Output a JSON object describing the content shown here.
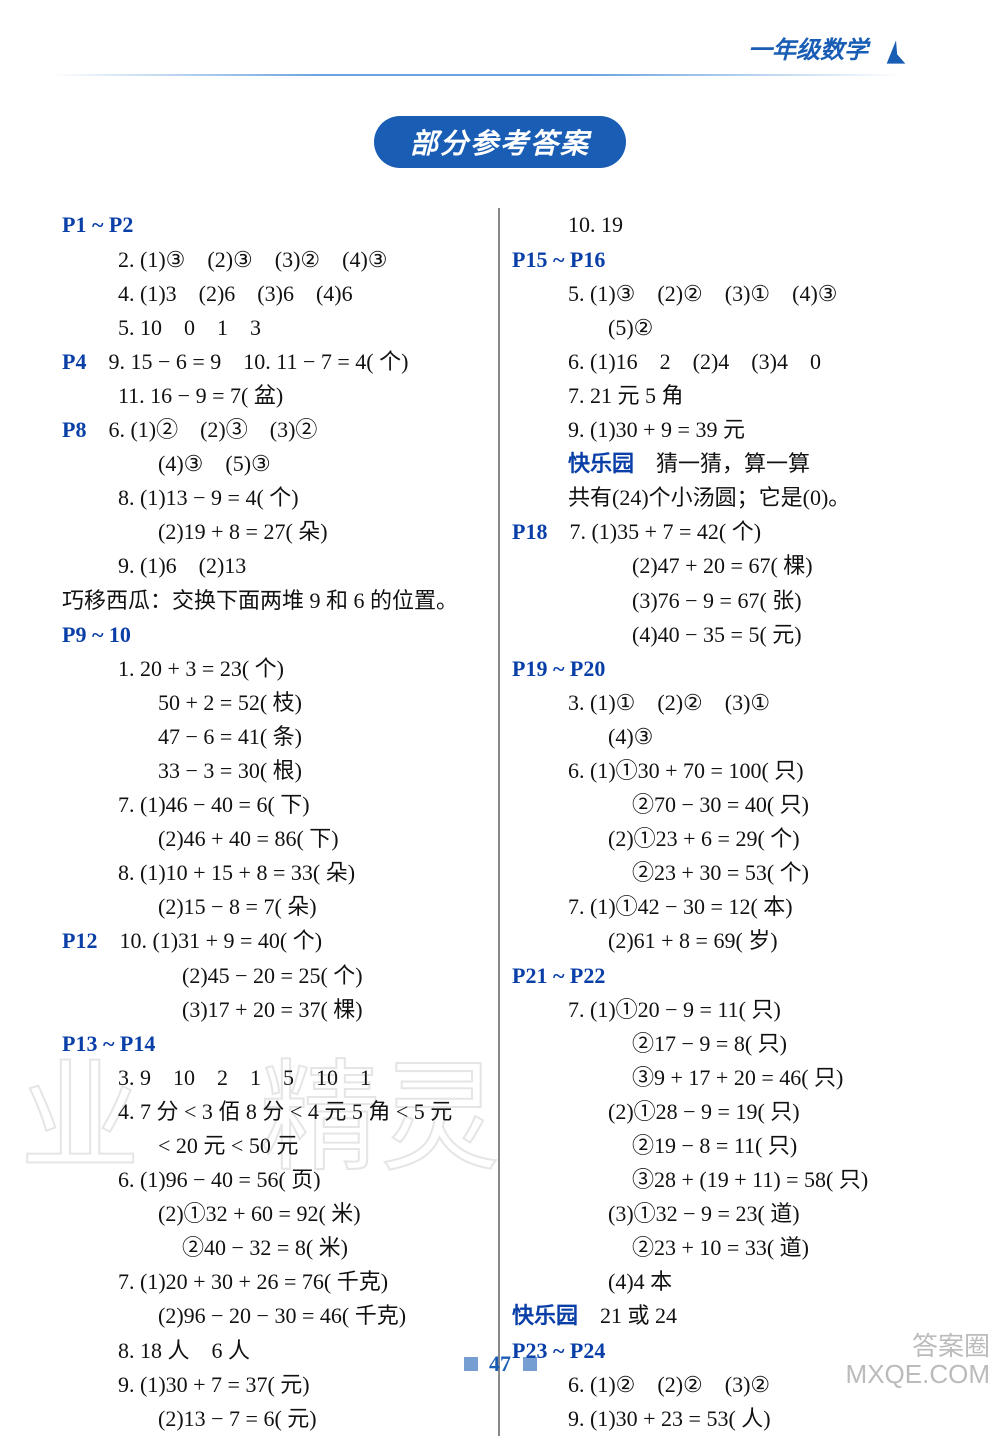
{
  "header": {
    "text": "一年级数学",
    "logo_fill": "#1a5db4"
  },
  "title": "部分参考答案",
  "colors": {
    "heading": "#0a3fa8",
    "body": "#111111",
    "pill_bg": "#1a5db4",
    "pill_fg": "#ffffff",
    "rule": "#888888"
  },
  "page_number": "47",
  "left_column": [
    {
      "t": "phead",
      "text": "P1 ~ P2",
      "indent": 0
    },
    {
      "t": "q",
      "text": "2. (1)③　(2)③　(3)②　(4)③",
      "indent": 1
    },
    {
      "t": "q",
      "text": "4. (1)3　(2)6　(3)6　(4)6",
      "indent": 1
    },
    {
      "t": "q",
      "text": "5. 10　0　1　3",
      "indent": 1
    },
    {
      "t": "mix",
      "head": "P4",
      "rest": "　9. 15 − 6 = 9　10. 11 − 7 = 4( 个)",
      "indent": 0
    },
    {
      "t": "q",
      "text": "11. 16 − 9 = 7( 盆)",
      "indent": 1
    },
    {
      "t": "mix",
      "head": "P8",
      "rest": "　6. (1)②　(2)③　(3)②",
      "indent": 0
    },
    {
      "t": "q",
      "text": "(4)③　(5)③",
      "indent": 2
    },
    {
      "t": "q",
      "text": "8. (1)13 − 9 = 4( 个)",
      "indent": 1
    },
    {
      "t": "q",
      "text": "(2)19 + 8 = 27( 朵)",
      "indent": 2
    },
    {
      "t": "q",
      "text": "9. (1)6　(2)13",
      "indent": 1
    },
    {
      "t": "q",
      "text": "巧移西瓜：交换下面两堆 9 和 6 的位置。",
      "indent": 0
    },
    {
      "t": "phead",
      "text": "P9 ~ 10",
      "indent": 0
    },
    {
      "t": "q",
      "text": "1. 20 + 3 = 23( 个)",
      "indent": 1
    },
    {
      "t": "q",
      "text": "50 + 2 = 52( 枝)",
      "indent": 2
    },
    {
      "t": "q",
      "text": "47 − 6 = 41( 条)",
      "indent": 2
    },
    {
      "t": "q",
      "text": "33 − 3 = 30( 根)",
      "indent": 2
    },
    {
      "t": "q",
      "text": "7. (1)46 − 40 = 6( 下)",
      "indent": 1
    },
    {
      "t": "q",
      "text": "(2)46 + 40 = 86( 下)",
      "indent": 2
    },
    {
      "t": "q",
      "text": "8. (1)10 + 15 + 8 = 33( 朵)",
      "indent": 1
    },
    {
      "t": "q",
      "text": "(2)15 − 8 = 7( 朵)",
      "indent": 2
    },
    {
      "t": "mix",
      "head": "P12",
      "rest": "　10. (1)31 + 9 = 40( 个)",
      "indent": 0
    },
    {
      "t": "q",
      "text": "(2)45 − 20 = 25( 个)",
      "indent": 3
    },
    {
      "t": "q",
      "text": "(3)17 + 20 = 37( 棵)",
      "indent": 3
    },
    {
      "t": "phead",
      "text": "P13 ~ P14",
      "indent": 0
    },
    {
      "t": "q",
      "text": "3. 9　10　2　1　5　10　1",
      "indent": 1
    },
    {
      "t": "q",
      "text": "4. 7 分 < 3 佰 8 分 < 4 元 5 角 < 5 元",
      "indent": 1
    },
    {
      "t": "q",
      "text": "< 20 元 < 50 元",
      "indent": 2
    },
    {
      "t": "q",
      "text": "6. (1)96 − 40 = 56( 页)",
      "indent": 1
    },
    {
      "t": "q",
      "text": "(2)①32 + 60 = 92( 米)",
      "indent": 2
    },
    {
      "t": "q",
      "text": "②40 − 32 = 8( 米)",
      "indent": 3
    },
    {
      "t": "q",
      "text": "7. (1)20 + 30 + 26 = 76( 千克)",
      "indent": 1
    },
    {
      "t": "q",
      "text": "(2)96 − 20 − 30 = 46( 千克)",
      "indent": 2
    },
    {
      "t": "q",
      "text": "8. 18 人　6 人",
      "indent": 1
    },
    {
      "t": "q",
      "text": "9. (1)30 + 7 = 37( 元)",
      "indent": 1
    },
    {
      "t": "q",
      "text": "(2)13 − 7 = 6( 元)",
      "indent": 2
    }
  ],
  "right_column": [
    {
      "t": "q",
      "text": "10. 19",
      "indent": 1
    },
    {
      "t": "phead",
      "text": "P15 ~ P16",
      "indent": 0
    },
    {
      "t": "q",
      "text": "5. (1)③　(2)②　(3)①　(4)③",
      "indent": 1
    },
    {
      "t": "q",
      "text": "(5)②",
      "indent": 2
    },
    {
      "t": "q",
      "text": "6. (1)16　2　(2)4　(3)4　0",
      "indent": 1
    },
    {
      "t": "q",
      "text": "7. 21 元 5 角",
      "indent": 1
    },
    {
      "t": "q",
      "text": "9. (1)30 + 9 = 39 元",
      "indent": 1
    },
    {
      "t": "mix2",
      "head": "快乐园",
      "rest": "　猜一猜，算一算",
      "indent": 1
    },
    {
      "t": "q",
      "text": "共有(24)个小汤圆；它是(0)。",
      "indent": 1
    },
    {
      "t": "mix",
      "head": "P18",
      "rest": "　7. (1)35 + 7 = 42( 个)",
      "indent": 0
    },
    {
      "t": "q",
      "text": "(2)47 + 20 = 67( 棵)",
      "indent": 3
    },
    {
      "t": "q",
      "text": "(3)76 − 9 = 67( 张)",
      "indent": 3
    },
    {
      "t": "q",
      "text": "(4)40 − 35 = 5( 元)",
      "indent": 3
    },
    {
      "t": "phead",
      "text": "P19 ~ P20",
      "indent": 0
    },
    {
      "t": "q",
      "text": "3. (1)①　(2)②　(3)①",
      "indent": 1
    },
    {
      "t": "q",
      "text": "(4)③",
      "indent": 2
    },
    {
      "t": "q",
      "text": "6. (1)①30 + 70 = 100( 只)",
      "indent": 1
    },
    {
      "t": "q",
      "text": "②70 − 30 = 40( 只)",
      "indent": 3
    },
    {
      "t": "q",
      "text": "(2)①23 + 6 = 29( 个)",
      "indent": 2
    },
    {
      "t": "q",
      "text": "②23 + 30 = 53( 个)",
      "indent": 3
    },
    {
      "t": "q",
      "text": "7. (1)①42 − 30 = 12( 本)",
      "indent": 1
    },
    {
      "t": "q",
      "text": "(2)61 + 8 = 69( 岁)",
      "indent": 2
    },
    {
      "t": "phead",
      "text": "P21 ~ P22",
      "indent": 0
    },
    {
      "t": "q",
      "text": "7. (1)①20 − 9 = 11( 只)",
      "indent": 1
    },
    {
      "t": "q",
      "text": "②17 − 9 = 8( 只)",
      "indent": 3
    },
    {
      "t": "q",
      "text": "③9 + 17 + 20 = 46( 只)",
      "indent": 3
    },
    {
      "t": "q",
      "text": "(2)①28 − 9 = 19( 只)",
      "indent": 2
    },
    {
      "t": "q",
      "text": "②19 − 8 = 11( 只)",
      "indent": 3
    },
    {
      "t": "q",
      "text": "③28 + (19 + 11) = 58( 只)",
      "indent": 3
    },
    {
      "t": "q",
      "text": "(3)①32 − 9 = 23( 道)",
      "indent": 2
    },
    {
      "t": "q",
      "text": "②23 + 10 = 33( 道)",
      "indent": 3
    },
    {
      "t": "q",
      "text": "(4)4 本",
      "indent": 2
    },
    {
      "t": "mix2",
      "head": "快乐园",
      "rest": "　21 或 24",
      "indent": 0
    },
    {
      "t": "phead",
      "text": "P23 ~ P24",
      "indent": 0
    },
    {
      "t": "q",
      "text": "6. (1)②　(2)②　(3)②",
      "indent": 1
    },
    {
      "t": "q",
      "text": "9. (1)30 + 23 = 53( 人)",
      "indent": 1
    }
  ],
  "watermarks": {
    "wm1": "业",
    "wm2": "精灵",
    "corner_line1": "答案圈",
    "corner_line2": "MXQE.COM"
  }
}
